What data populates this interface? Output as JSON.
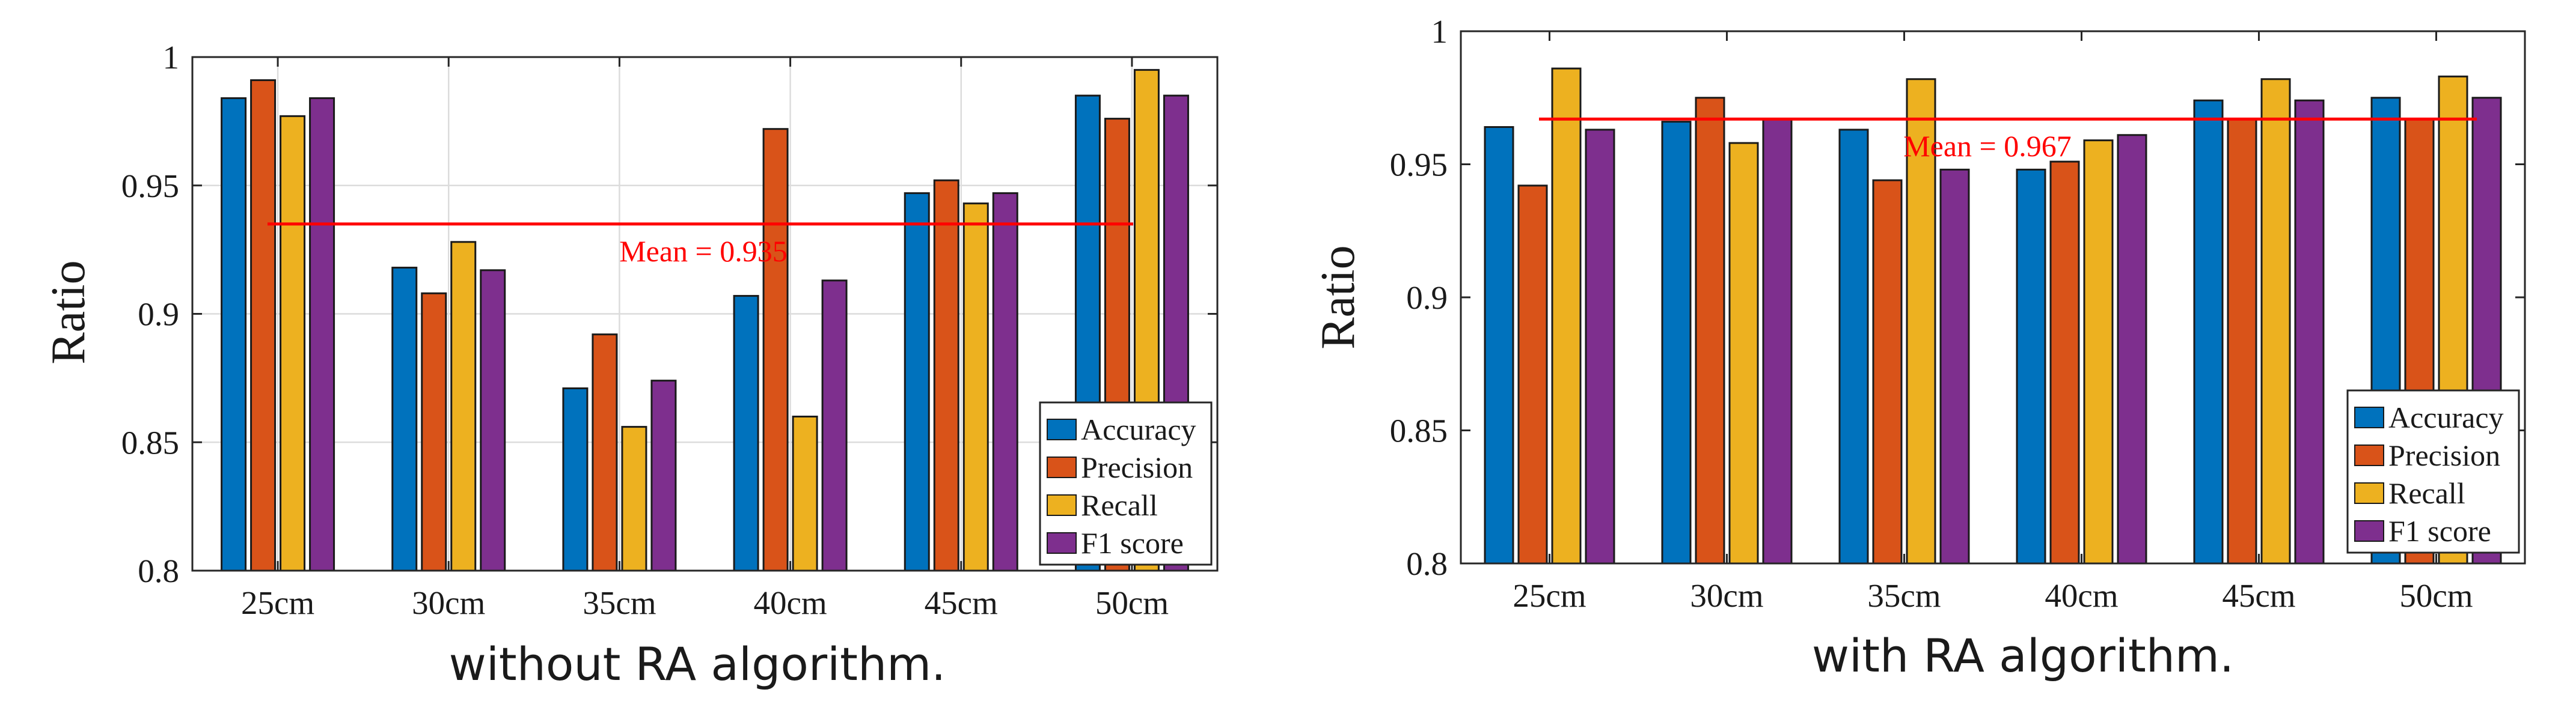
{
  "chart_data": [
    {
      "type": "bar",
      "caption": "without RA algorithm.",
      "ylabel": "Ratio",
      "ylim": [
        0.8,
        1.0
      ],
      "yticks": [
        "0.8",
        "0.85",
        "0.9",
        "0.95",
        "1"
      ],
      "grid": true,
      "categories": [
        "25cm",
        "30cm",
        "35cm",
        "40cm",
        "45cm",
        "50cm"
      ],
      "series": [
        {
          "name": "Accuracy",
          "color": "#0072BD",
          "values": [
            0.984,
            0.918,
            0.871,
            0.907,
            0.947,
            0.985
          ]
        },
        {
          "name": "Precision",
          "color": "#D95319",
          "values": [
            0.991,
            0.908,
            0.892,
            0.972,
            0.952,
            0.976
          ]
        },
        {
          "name": "Recall",
          "color": "#EDB120",
          "values": [
            0.977,
            0.928,
            0.856,
            0.86,
            0.943,
            0.995
          ]
        },
        {
          "name": "F1 score",
          "color": "#7E2F8E",
          "values": [
            0.984,
            0.917,
            0.874,
            0.913,
            0.947,
            0.985
          ]
        }
      ],
      "mean": {
        "value": 0.935,
        "label": "Mean = 0.935",
        "color": "#FF0000"
      },
      "legend_position": "bottom-right"
    },
    {
      "type": "bar",
      "caption": "with RA algorithm.",
      "ylabel": "Ratio",
      "ylim": [
        0.8,
        1.0
      ],
      "yticks": [
        "0.8",
        "0.85",
        "0.9",
        "0.95",
        "1"
      ],
      "grid": false,
      "categories": [
        "25cm",
        "30cm",
        "35cm",
        "40cm",
        "45cm",
        "50cm"
      ],
      "series": [
        {
          "name": "Accuracy",
          "color": "#0072BD",
          "values": [
            0.964,
            0.966,
            0.963,
            0.948,
            0.974,
            0.975
          ]
        },
        {
          "name": "Precision",
          "color": "#D95319",
          "values": [
            0.942,
            0.975,
            0.944,
            0.951,
            0.967,
            0.967
          ]
        },
        {
          "name": "Recall",
          "color": "#EDB120",
          "values": [
            0.986,
            0.958,
            0.982,
            0.959,
            0.982,
            0.983
          ]
        },
        {
          "name": "F1 score",
          "color": "#7E2F8E",
          "values": [
            0.963,
            0.967,
            0.948,
            0.961,
            0.974,
            0.975
          ]
        }
      ],
      "mean": {
        "value": 0.967,
        "label": "Mean = 0.967",
        "color": "#FF0000"
      },
      "legend_position": "bottom-right"
    }
  ]
}
